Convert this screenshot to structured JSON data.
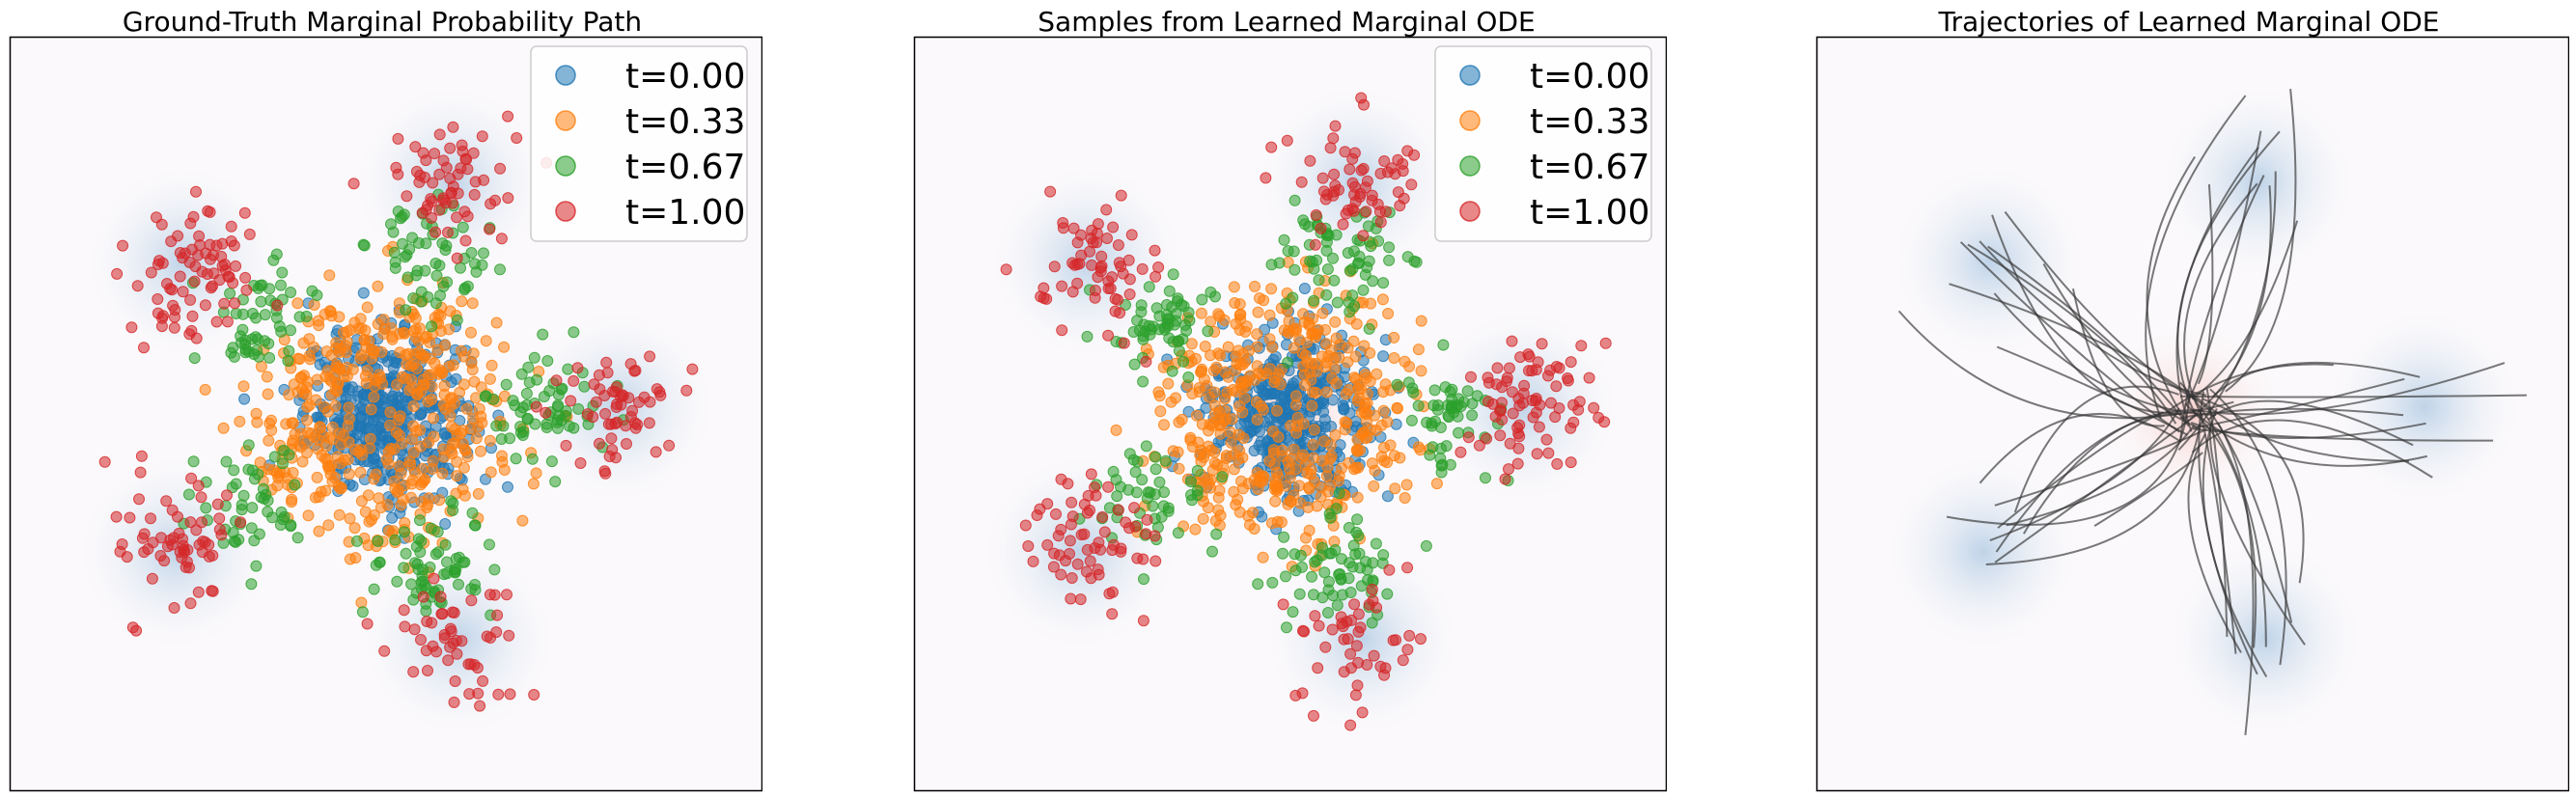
{
  "chart_data": [
    {
      "type": "scatter",
      "title": "Ground-Truth Marginal Probability Path",
      "xlabel": "",
      "ylabel": "",
      "xlim": [
        -2.6,
        2.6
      ],
      "ylim": [
        -2.6,
        2.6
      ],
      "grid": false,
      "ticks": false,
      "legend_position": "top-right",
      "colors": {
        "t=0.00": "#1f77b4",
        "t=0.33": "#ff7f0e",
        "t=0.67": "#2ca02c",
        "t=1.00": "#d62728"
      },
      "background": {
        "source_density_center": [
          0,
          0
        ],
        "target_mode_centers": [
          [
            0.45,
            1.6
          ],
          [
            1.6,
            0.05
          ],
          [
            0.5,
            -1.55
          ],
          [
            -1.45,
            -0.95
          ],
          [
            -1.4,
            1.05
          ]
        ]
      },
      "series": [
        {
          "name": "t=0.00",
          "mean_radius": 0.0,
          "std": 0.28,
          "count": 400
        },
        {
          "name": "t=0.33",
          "mean_radius": 0.55,
          "std": 0.26,
          "count": 450
        },
        {
          "name": "t=0.67",
          "mean_radius": 1.1,
          "std": 0.2,
          "count": 300
        },
        {
          "name": "t=1.00",
          "mean_radius": 1.65,
          "std": 0.22,
          "count": 320
        }
      ]
    },
    {
      "type": "scatter",
      "title": "Samples from Learned Marginal ODE",
      "xlabel": "",
      "ylabel": "",
      "xlim": [
        -2.6,
        2.6
      ],
      "ylim": [
        -2.6,
        2.6
      ],
      "grid": false,
      "ticks": false,
      "legend_position": "top-right",
      "colors": {
        "t=0.00": "#1f77b4",
        "t=0.33": "#ff7f0e",
        "t=0.67": "#2ca02c",
        "t=1.00": "#d62728"
      },
      "background": {
        "source_density_center": [
          0,
          0
        ],
        "target_mode_centers": [
          [
            0.45,
            1.6
          ],
          [
            1.6,
            0.05
          ],
          [
            0.5,
            -1.55
          ],
          [
            -1.45,
            -0.95
          ],
          [
            -1.4,
            1.05
          ]
        ]
      },
      "series": [
        {
          "name": "t=0.00",
          "mean_radius": 0.0,
          "std": 0.28,
          "count": 400
        },
        {
          "name": "t=0.33",
          "mean_radius": 0.55,
          "std": 0.26,
          "count": 450
        },
        {
          "name": "t=0.67",
          "mean_radius": 1.1,
          "std": 0.2,
          "count": 300
        },
        {
          "name": "t=1.00",
          "mean_radius": 1.65,
          "std": 0.22,
          "count": 320
        }
      ]
    },
    {
      "type": "line",
      "title": "Trajectories of Learned Marginal ODE",
      "xlabel": "",
      "ylabel": "",
      "xlim": [
        -2.6,
        2.6
      ],
      "ylim": [
        -2.6,
        2.6
      ],
      "grid": false,
      "ticks": false,
      "line_color": "#333333",
      "trajectory_count": 60,
      "start_center": [
        0,
        0
      ],
      "end_mode_centers": [
        [
          0.45,
          1.6
        ],
        [
          1.6,
          0.05
        ],
        [
          0.5,
          -1.55
        ],
        [
          -1.45,
          -0.95
        ],
        [
          -1.4,
          1.05
        ]
      ],
      "background": {
        "source_density_center": [
          0,
          0
        ],
        "target_mode_centers": [
          [
            0.45,
            1.6
          ],
          [
            1.6,
            0.05
          ],
          [
            0.5,
            -1.55
          ],
          [
            -1.45,
            -0.95
          ],
          [
            -1.4,
            1.05
          ]
        ]
      }
    }
  ]
}
